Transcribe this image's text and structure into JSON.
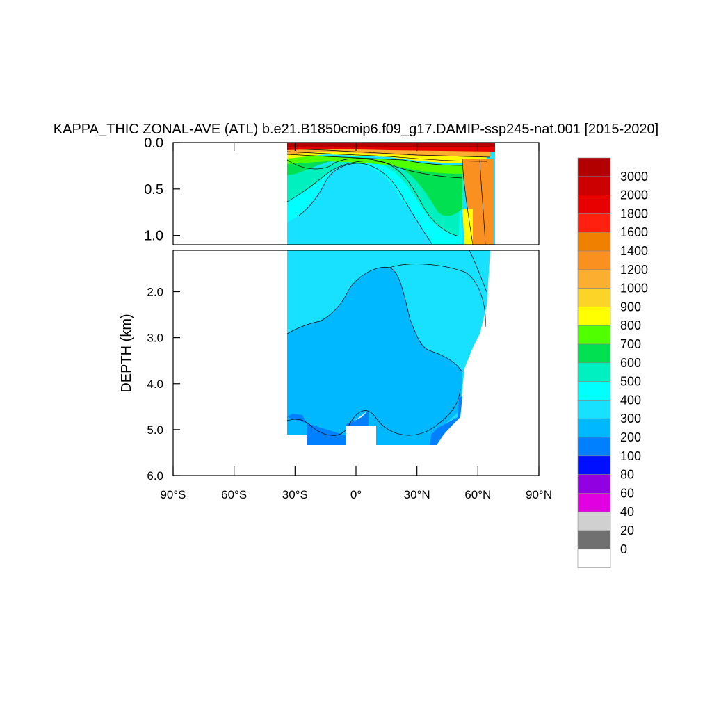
{
  "chart_data": {
    "type": "heatmap",
    "title": "KAPPA_THIC ZONAL-AVE (ATL) b.e21.B1850cmip6.f09_g17.DAMIP-ssp245-nat.001 [2015-2020]",
    "xlabel": "",
    "ylabel": "DEPTH (km)",
    "xlim": [
      -90,
      90
    ],
    "ylim": [
      6.0,
      0.0
    ],
    "x_ticks": [
      {
        "value": -90,
        "label": "90°S"
      },
      {
        "value": -60,
        "label": "60°S"
      },
      {
        "value": -30,
        "label": "30°S"
      },
      {
        "value": 0,
        "label": "0°"
      },
      {
        "value": 30,
        "label": "30°N"
      },
      {
        "value": 60,
        "label": "60°N"
      },
      {
        "value": 90,
        "label": "90°N"
      }
    ],
    "upper_panel": {
      "depth_range": [
        0.0,
        1.1
      ],
      "y_ticks": [
        {
          "value": 0.0,
          "label": "0.0"
        },
        {
          "value": 0.5,
          "label": "0.5"
        },
        {
          "value": 1.0,
          "label": "1.0"
        }
      ]
    },
    "lower_panel": {
      "depth_range": [
        1.1,
        6.0
      ],
      "y_ticks": [
        {
          "value": 2.0,
          "label": "2.0"
        },
        {
          "value": 3.0,
          "label": "3.0"
        },
        {
          "value": 4.0,
          "label": "4.0"
        },
        {
          "value": 5.0,
          "label": "5.0"
        },
        {
          "value": 6.0,
          "label": "6.0"
        }
      ]
    },
    "colorbar": {
      "levels": [
        {
          "label": "3000",
          "color": "#b20000"
        },
        {
          "label": "2000",
          "color": "#cc0000"
        },
        {
          "label": "1800",
          "color": "#e60000"
        },
        {
          "label": "1600",
          "color": "#ff2010"
        },
        {
          "label": "1400",
          "color": "#f08000"
        },
        {
          "label": "1200",
          "color": "#fa9020"
        },
        {
          "label": "1000",
          "color": "#fcae30"
        },
        {
          "label": "900",
          "color": "#fcd428"
        },
        {
          "label": "800",
          "color": "#ffff00"
        },
        {
          "label": "700",
          "color": "#50ff00"
        },
        {
          "label": "600",
          "color": "#00e050"
        },
        {
          "label": "500",
          "color": "#00f0c0"
        },
        {
          "label": "400",
          "color": "#00ffff"
        },
        {
          "label": "300",
          "color": "#18e0ff"
        },
        {
          "label": "200",
          "color": "#00b8ff"
        },
        {
          "label": "100",
          "color": "#0080ff"
        },
        {
          "label": "80",
          "color": "#0010ff"
        },
        {
          "label": "60",
          "color": "#9000e0"
        },
        {
          "label": "40",
          "color": "#e000e0"
        },
        {
          "label": "20",
          "color": "#d0d0d0"
        },
        {
          "label": "0",
          "color": "#707070"
        },
        {
          "label": "",
          "color": "#ffffff"
        }
      ]
    },
    "basin_extent": {
      "lat_south": -34,
      "lat_north": 70
    }
  }
}
